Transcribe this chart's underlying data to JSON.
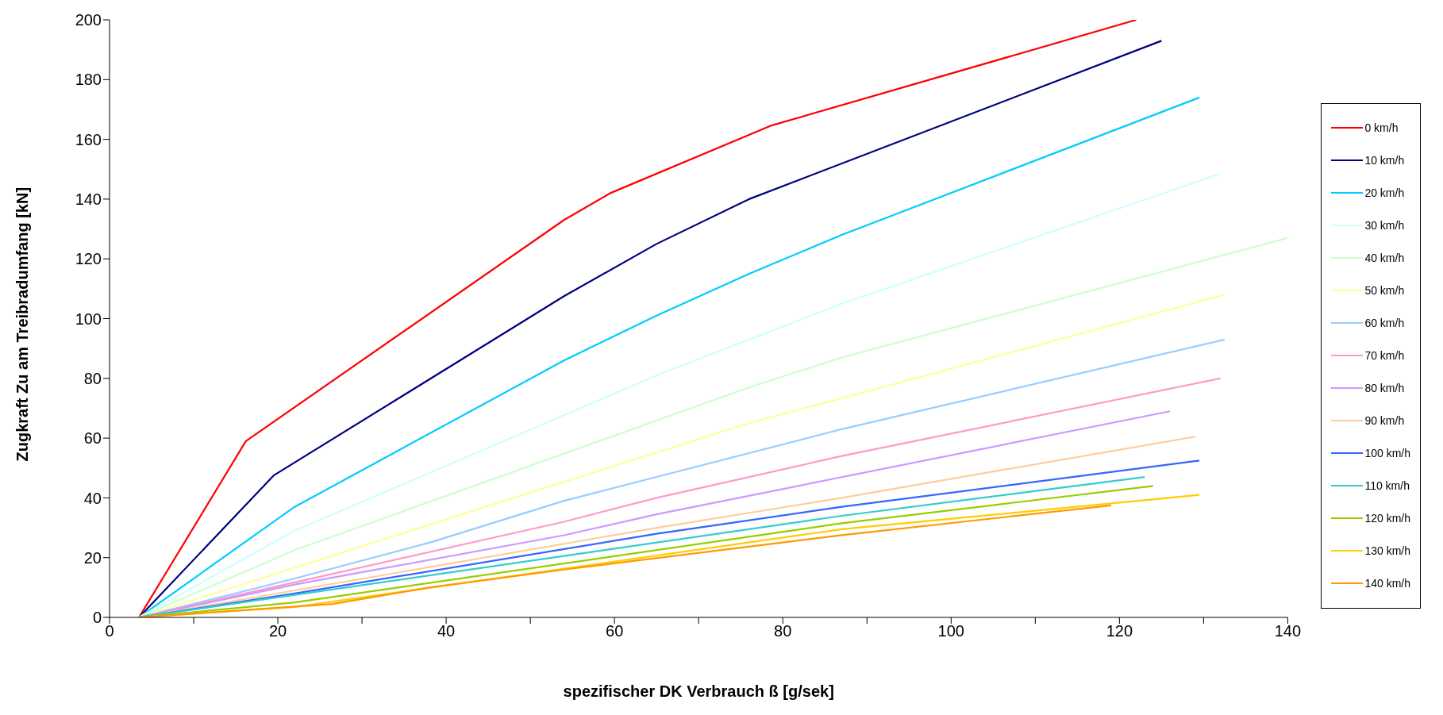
{
  "chart_data": {
    "type": "line",
    "xlabel": "spezifischer DK Verbrauch ß [g/sek]",
    "ylabel": "Zugkraft Zu am Treibradumfang [kN]",
    "xlim": [
      0,
      140
    ],
    "xticks": [
      0,
      {
        "value": 10,
        "label": null
      },
      20,
      {
        "value": 30,
        "label": null
      },
      40,
      {
        "value": 50,
        "label": null
      },
      60,
      {
        "value": 70,
        "label": null
      },
      80,
      {
        "value": 90,
        "label": null
      },
      100,
      {
        "value": 110,
        "label": null
      },
      120,
      {
        "value": 130,
        "label": null
      },
      140
    ],
    "ylim": [
      0,
      200
    ],
    "yticks": [
      0,
      20,
      40,
      60,
      80,
      100,
      120,
      140,
      160,
      180,
      200
    ],
    "grid": false,
    "legend": "right",
    "marker": "none",
    "line_style": "solid",
    "series": [
      {
        "name": "0 km/h",
        "color": "#ff0000",
        "x": [
          3.5,
          16.2,
          54,
          59.5,
          78.5,
          122
        ],
        "values": [
          0,
          59,
          133,
          142,
          164.5,
          200
        ]
      },
      {
        "name": "10 km/h",
        "color": "#000080",
        "x": [
          3.5,
          19.5,
          54,
          65,
          76,
          125
        ],
        "values": [
          0,
          47.5,
          107.5,
          125,
          140,
          193
        ]
      },
      {
        "name": "20 km/h",
        "color": "#00ccff",
        "x": [
          3.5,
          22,
          54,
          65,
          76,
          87,
          129.5
        ],
        "values": [
          0,
          37,
          86,
          101,
          115,
          128,
          174
        ]
      },
      {
        "name": "30 km/h",
        "color": "#ccffff",
        "x": [
          3.5,
          22,
          65,
          87,
          132
        ],
        "values": [
          0,
          29,
          81,
          105,
          148.5
        ]
      },
      {
        "name": "40 km/h",
        "color": "#ccffcc",
        "x": [
          3.5,
          22,
          76,
          87,
          140
        ],
        "values": [
          0,
          22.5,
          77,
          87,
          127
        ]
      },
      {
        "name": "50 km/h",
        "color": "#ffff99",
        "x": [
          3.5,
          48,
          76,
          132.5
        ],
        "values": [
          0,
          40,
          65,
          108
        ]
      },
      {
        "name": "60 km/h",
        "color": "#99ccff",
        "x": [
          3.5,
          22,
          38,
          54,
          65,
          87,
          132.5
        ],
        "values": [
          0,
          13,
          25,
          39,
          47,
          63,
          93
        ]
      },
      {
        "name": "70 km/h",
        "color": "#ff99cc",
        "x": [
          3.5,
          54,
          65,
          87,
          132
        ],
        "values": [
          0,
          32,
          40,
          54,
          80
        ]
      },
      {
        "name": "80 km/h",
        "color": "#cc99ff",
        "x": [
          3.5,
          22,
          54,
          65,
          126
        ],
        "values": [
          0,
          11,
          27.5,
          34.5,
          69
        ]
      },
      {
        "name": "90 km/h",
        "color": "#ffcc99",
        "x": [
          3.5,
          65,
          87,
          129
        ],
        "values": [
          0,
          30,
          40,
          60.5
        ]
      },
      {
        "name": "100 km/h",
        "color": "#3366ff",
        "x": [
          3.5,
          22,
          65,
          87,
          129.5
        ],
        "values": [
          0,
          8,
          28,
          37,
          52.5
        ]
      },
      {
        "name": "110 km/h",
        "color": "#33cccc",
        "x": [
          3.5,
          87,
          123
        ],
        "values": [
          0,
          34,
          47
        ]
      },
      {
        "name": "120 km/h",
        "color": "#99cc00",
        "x": [
          3.5,
          22,
          87,
          124
        ],
        "values": [
          0,
          5,
          31.5,
          44
        ]
      },
      {
        "name": "130 km/h",
        "color": "#ffcc00",
        "x": [
          3.5,
          22,
          87,
          129.5
        ],
        "values": [
          0,
          3.5,
          29.5,
          41
        ]
      },
      {
        "name": "140 km/h",
        "color": "#ff9900",
        "x": [
          3.5,
          26.5,
          38,
          54,
          87,
          119
        ],
        "values": [
          0,
          4.5,
          10,
          16,
          27.5,
          37.5
        ]
      }
    ]
  }
}
